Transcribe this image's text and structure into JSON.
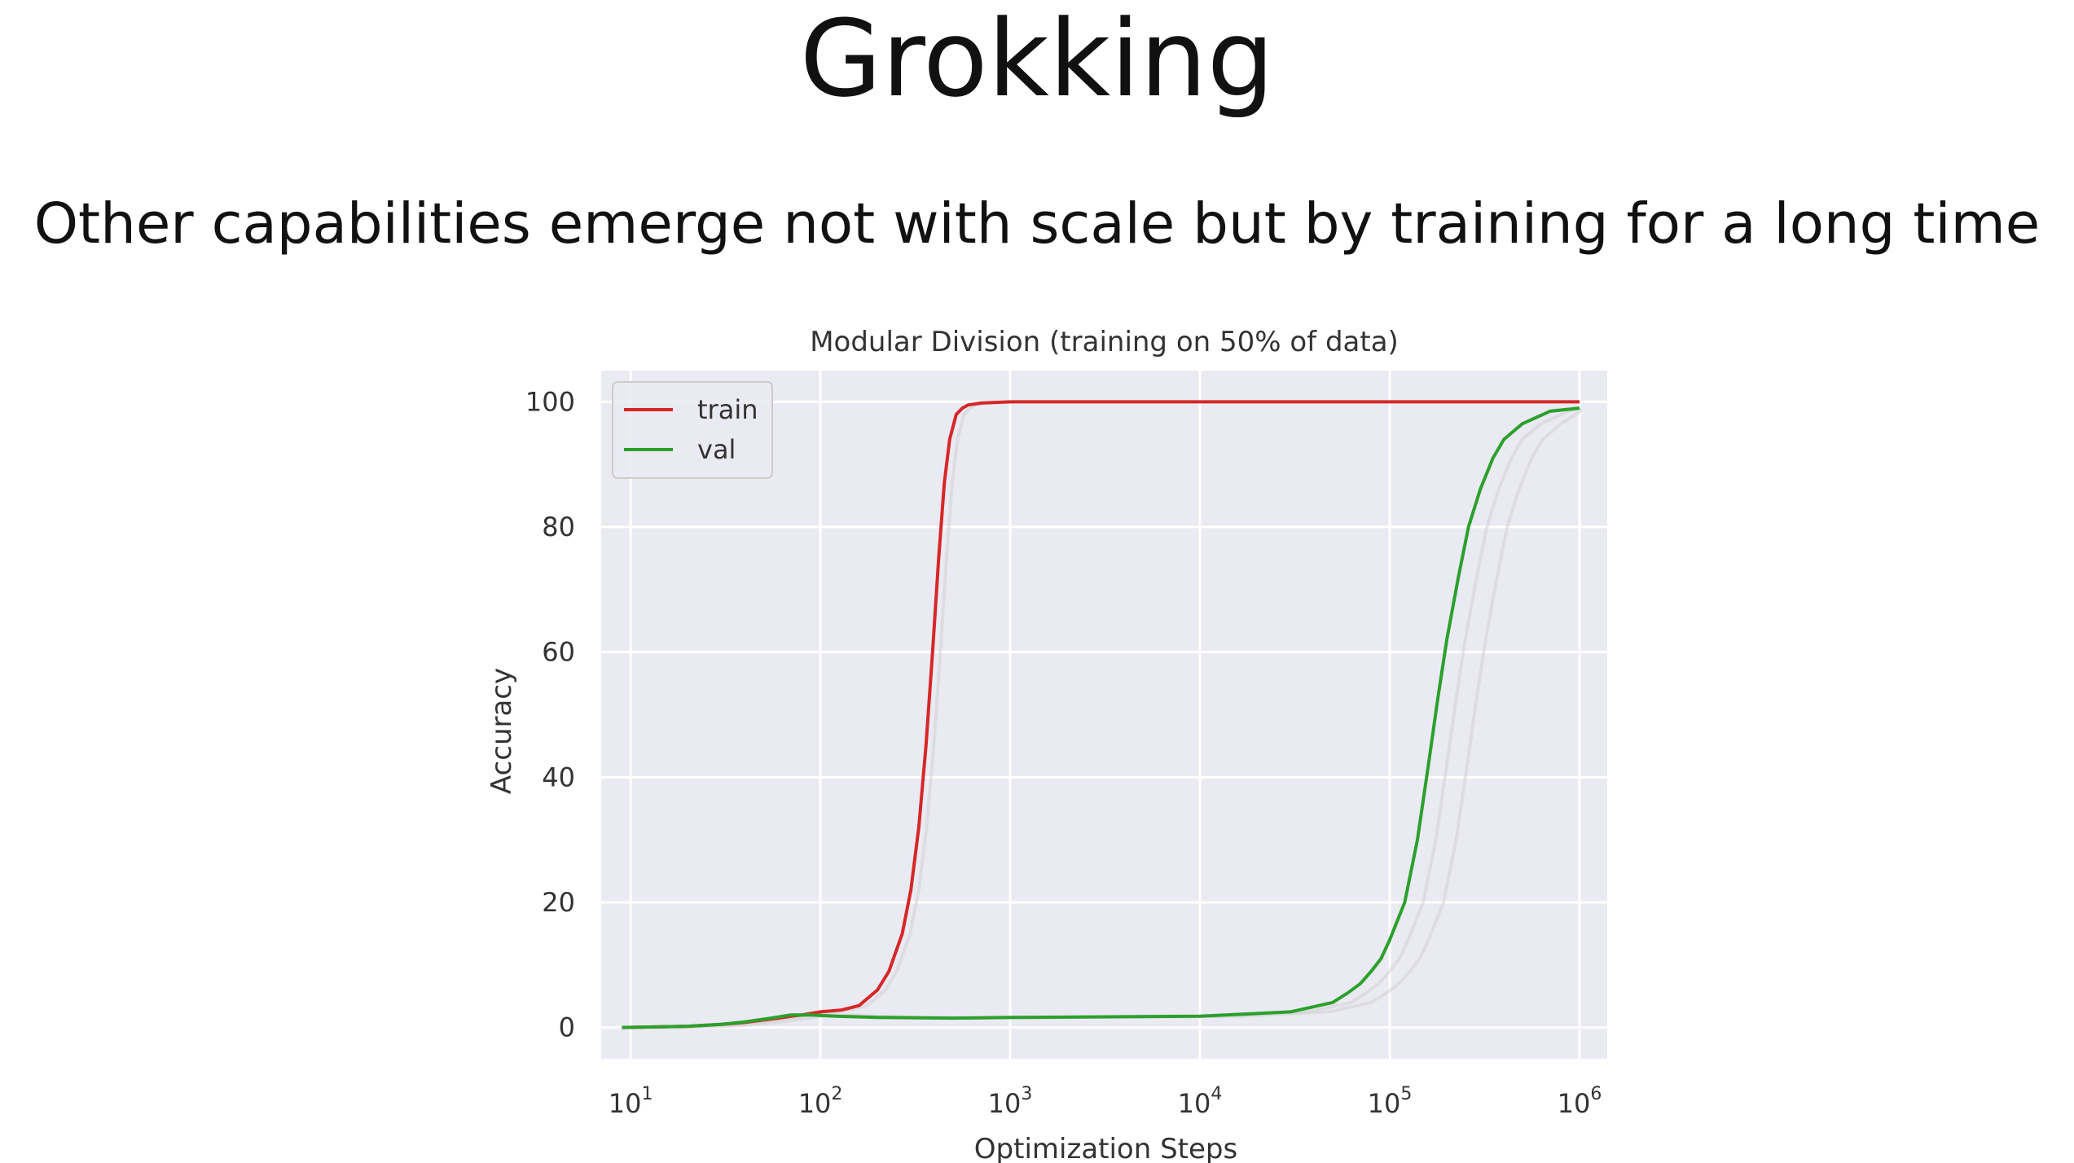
{
  "slide": {
    "title": "Grokking",
    "subtitle": "Other capabilities emerge not with scale but by training for a long time"
  },
  "chart_data": {
    "type": "line",
    "title": "Modular Division (training on 50% of data)",
    "xlabel": "Optimization Steps",
    "ylabel": "Accuracy",
    "xscale": "log",
    "xlim": [
      7,
      1400000
    ],
    "ylim": [
      -5,
      105
    ],
    "grid": true,
    "legend_position": "top-left",
    "x_ticks": [
      {
        "value": 10,
        "base": "10",
        "exp": "1"
      },
      {
        "value": 100,
        "base": "10",
        "exp": "2"
      },
      {
        "value": 1000,
        "base": "10",
        "exp": "3"
      },
      {
        "value": 10000,
        "base": "10",
        "exp": "4"
      },
      {
        "value": 100000,
        "base": "10",
        "exp": "5"
      },
      {
        "value": 1000000,
        "base": "10",
        "exp": "6"
      }
    ],
    "y_ticks": [
      {
        "value": 0,
        "label": "0"
      },
      {
        "value": 20,
        "label": "20"
      },
      {
        "value": 40,
        "label": "40"
      },
      {
        "value": 60,
        "label": "60"
      },
      {
        "value": 80,
        "label": "80"
      },
      {
        "value": 100,
        "label": "100"
      }
    ],
    "colors": {
      "background": "#eaeaf2",
      "grid": "#ffffff",
      "train": "#d62728",
      "val": "#2ca02c",
      "shadow": "#cccccc"
    },
    "series": [
      {
        "name": "train",
        "color": "#d62728",
        "x": [
          9,
          20,
          30,
          40,
          50,
          60,
          70,
          80,
          100,
          130,
          160,
          200,
          230,
          270,
          300,
          330,
          360,
          390,
          420,
          450,
          480,
          520,
          560,
          600,
          700,
          1000,
          3000,
          10000,
          100000,
          1000000
        ],
        "y": [
          0,
          0.2,
          0.5,
          0.8,
          1.2,
          1.5,
          1.8,
          2.0,
          2.5,
          2.8,
          3.5,
          6,
          9,
          15,
          22,
          32,
          45,
          60,
          75,
          87,
          94,
          98,
          99,
          99.5,
          99.8,
          100,
          100,
          100,
          100,
          100
        ]
      },
      {
        "name": "val",
        "color": "#2ca02c",
        "x": [
          9,
          20,
          30,
          40,
          55,
          70,
          90,
          120,
          200,
          500,
          1000,
          10000,
          30000,
          50000,
          60000,
          70000,
          80000,
          90000,
          100000,
          120000,
          140000,
          160000,
          180000,
          200000,
          230000,
          260000,
          300000,
          350000,
          400000,
          500000,
          700000,
          1000000
        ],
        "y": [
          0,
          0.2,
          0.5,
          0.9,
          1.5,
          2.0,
          2.0,
          1.8,
          1.6,
          1.5,
          1.6,
          1.8,
          2.5,
          4,
          5.5,
          7,
          9,
          11,
          14,
          20,
          30,
          42,
          53,
          62,
          72,
          80,
          86,
          91,
          94,
          96.5,
          98.5,
          99
        ]
      }
    ]
  }
}
